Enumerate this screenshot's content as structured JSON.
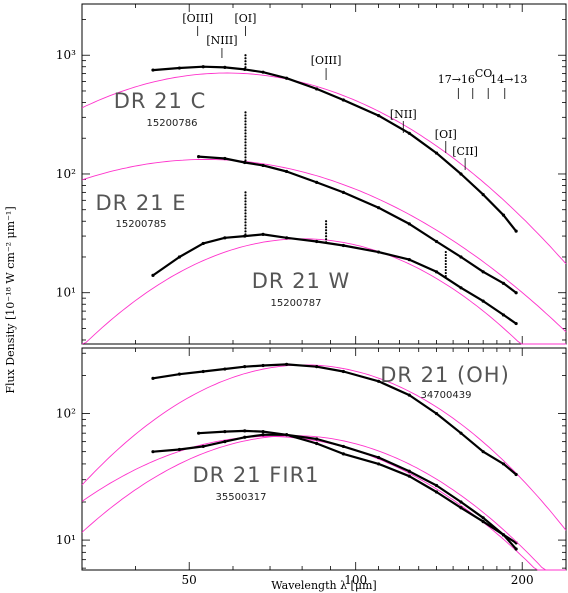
{
  "chart_data": [
    {
      "type": "line",
      "panel": "top",
      "xlabel": "Wavelength λ [μm]",
      "ylabel": "Flux Density [10⁻¹⁸ W cm⁻² μm⁻¹]",
      "xscale": "log",
      "yscale": "log",
      "xlim": [
        32,
        240
      ],
      "ylim": [
        3.7,
        2700
      ],
      "ytick_labels": [
        "10¹",
        "10²",
        "10³"
      ],
      "yticks": [
        10,
        100,
        1000
      ],
      "line_markers": [
        {
          "label": "[OIII]",
          "x": 51.8
        },
        {
          "label": "[NIII]",
          "x": 57.3
        },
        {
          "label": "[OI]",
          "x": 63.2
        },
        {
          "label": "[OIII]",
          "x": 88.4
        },
        {
          "label": "[NII]",
          "x": 121.9
        },
        {
          "label": "[OI]",
          "x": 145.5
        },
        {
          "label": "[CII]",
          "x": 157.7
        }
      ],
      "co_label": "CO",
      "co_ladder": {
        "start_label": "17→16",
        "end_label": "14→13",
        "x": [
          153.3,
          162.8,
          173.6,
          186.0
        ]
      },
      "series": [
        {
          "name": "DR 21 C",
          "id": "15200786",
          "obs_x": [
            43,
            48,
            53,
            58,
            63,
            68,
            75,
            85,
            95,
            110,
            125,
            140,
            155,
            170,
            185,
            195
          ],
          "obs_y": [
            750,
            780,
            800,
            790,
            760,
            720,
            640,
            520,
            420,
            310,
            220,
            150,
            100,
            67,
            45,
            33
          ],
          "model_y": [
            500,
            660,
            760,
            780,
            760,
            720,
            640,
            530,
            430,
            320,
            230,
            165,
            118,
            85,
            62,
            52
          ],
          "spikes": [
            {
              "x": 63.2,
              "y": 1000
            }
          ]
        },
        {
          "name": "DR 21 E",
          "id": "15200785",
          "obs_x": [
            52,
            58,
            63,
            68,
            75,
            85,
            95,
            110,
            125,
            140,
            155,
            170,
            185,
            195
          ],
          "obs_y": [
            140,
            135,
            125,
            118,
            105,
            85,
            70,
            52,
            38,
            27,
            20,
            15,
            12,
            10
          ],
          "model_y": [
            125,
            130,
            130,
            126,
            118,
            100,
            82,
            60,
            44,
            32,
            24,
            18,
            14,
            11.5
          ],
          "spikes": [
            {
              "x": 63.2,
              "y": 330
            },
            {
              "x": 88.4,
              "y": 78
            }
          ]
        },
        {
          "name": "DR 21 W",
          "id": "15200787",
          "obs_x": [
            43,
            48,
            53,
            58,
            63,
            68,
            75,
            85,
            95,
            110,
            125,
            140,
            155,
            170,
            185,
            195
          ],
          "obs_y": [
            14,
            20,
            26,
            29,
            30,
            31,
            29,
            27,
            25,
            22,
            19,
            15,
            11,
            8.5,
            6.5,
            5.5
          ],
          "model_y": [
            9,
            14,
            20,
            25,
            28,
            30,
            30,
            28,
            25,
            20,
            15.5,
            12,
            9,
            7,
            5.5,
            4.5
          ],
          "spikes": [
            {
              "x": 63.2,
              "y": 70
            },
            {
              "x": 88.4,
              "y": 40
            },
            {
              "x": 145.5,
              "y": 22
            }
          ]
        }
      ]
    },
    {
      "type": "line",
      "panel": "bottom",
      "xlabel": "Wavelength λ [μm]",
      "xscale": "log",
      "yscale": "log",
      "xlim": [
        32,
        240
      ],
      "ylim": [
        5.8,
        330
      ],
      "ytick_labels": [
        "10¹",
        "10²"
      ],
      "yticks": [
        10,
        100
      ],
      "xtick_labels": [
        "50",
        "100",
        "200"
      ],
      "xticks": [
        50,
        100,
        200
      ],
      "series": [
        {
          "name": "DR 21 (OH)",
          "id": "34700439",
          "obs_x": [
            43,
            48,
            53,
            58,
            63,
            68,
            75,
            85,
            95,
            110,
            125,
            140,
            155,
            170,
            185,
            195
          ],
          "obs_y": [
            190,
            205,
            215,
            225,
            235,
            240,
            245,
            235,
            215,
            180,
            140,
            100,
            70,
            50,
            40,
            33
          ],
          "model_y": [
            75,
            120,
            165,
            200,
            225,
            240,
            245,
            240,
            220,
            180,
            140,
            105,
            78,
            58,
            44,
            38
          ]
        },
        {
          "name": "DR 21 FIR1",
          "id": "35500317",
          "obs_x": [
            52,
            58,
            63,
            68,
            75,
            85,
            95,
            110,
            125,
            140,
            155,
            170,
            185,
            195
          ],
          "obs_y": [
            70,
            72,
            73,
            72,
            68,
            58,
            48,
            40,
            32,
            24,
            18,
            14,
            11,
            9.5
          ],
          "model_y": [
            52,
            60,
            66,
            70,
            70,
            64,
            55,
            42,
            32,
            24,
            18,
            13.5,
            10.5,
            8.8
          ]
        },
        {
          "name": "",
          "id": "",
          "obs_x": [
            43,
            48,
            53,
            58,
            63,
            68,
            75,
            85,
            95,
            110,
            125,
            140,
            155,
            170,
            185,
            195
          ],
          "obs_y": [
            50,
            52,
            55,
            60,
            65,
            68,
            68,
            63,
            55,
            45,
            35,
            27,
            20,
            15,
            11,
            8.5
          ],
          "model_y": [
            30,
            40,
            48,
            56,
            62,
            66,
            68,
            66,
            60,
            50,
            39,
            30,
            22,
            16.5,
            12.5,
            9.8
          ]
        }
      ]
    }
  ]
}
